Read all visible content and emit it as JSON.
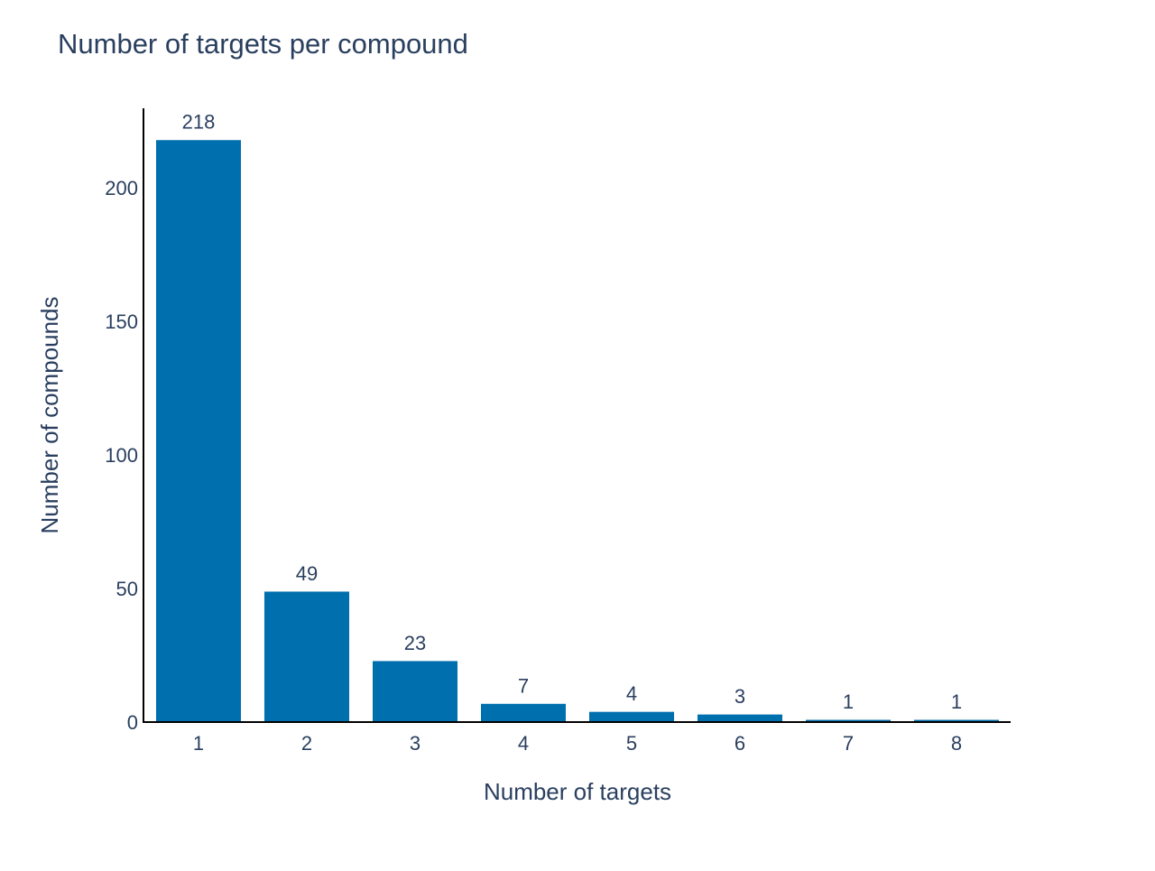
{
  "chart_data": {
    "type": "bar",
    "title": "Number of targets per compound",
    "xlabel": "Number of targets",
    "ylabel": "Number of compounds",
    "categories": [
      "1",
      "2",
      "3",
      "4",
      "5",
      "6",
      "7",
      "8"
    ],
    "values": [
      218,
      49,
      23,
      7,
      4,
      3,
      1,
      1
    ],
    "data_labels": [
      "218",
      "49",
      "23",
      "7",
      "4",
      "3",
      "1",
      "1"
    ],
    "ylim": [
      0,
      225
    ],
    "yticks": [
      0,
      50,
      100,
      150,
      200
    ],
    "grid": false,
    "legend": "none",
    "colors": {
      "bar": "#006fad",
      "text": "#2a3f5f",
      "axis": "#000000"
    }
  }
}
